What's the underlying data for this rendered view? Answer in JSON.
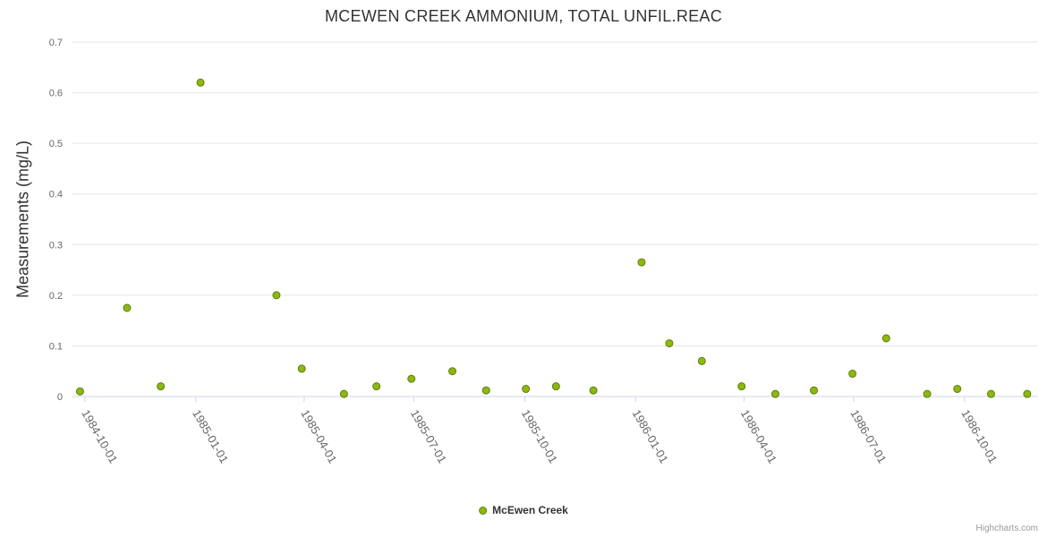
{
  "credits": "Highcharts.com",
  "colors": {
    "point_fill": "#8cb811",
    "point_stroke": "#5e7f0b",
    "grid": "#e6e6e6",
    "axis_line": "#ccd6eb",
    "label": "#666666",
    "title": "#333333"
  },
  "chart_data": {
    "type": "scatter",
    "title": "MCEWEN CREEK AMMONIUM, TOTAL UNFIL.REAC",
    "ylabel": "Measurements (mg/L)",
    "xlabel": "",
    "ylim": [
      0,
      0.7
    ],
    "yticks": [
      0,
      0.1,
      0.2,
      0.3,
      0.4,
      0.5,
      0.6,
      0.7
    ],
    "ytick_labels": [
      "0",
      "0.1",
      "0.2",
      "0.3",
      "0.4",
      "0.5",
      "0.6",
      "0.7"
    ],
    "xlim": [
      "1984-09-20",
      "1986-12-01"
    ],
    "xticks": [
      "1984-10-01",
      "1985-01-01",
      "1985-04-01",
      "1985-07-01",
      "1985-10-01",
      "1986-01-01",
      "1986-04-01",
      "1986-07-01",
      "1986-10-01"
    ],
    "grid": true,
    "legend_position": "bottom-center",
    "series": [
      {
        "name": "McEwen Creek",
        "points": [
          [
            "1984-09-27",
            0.01
          ],
          [
            "1984-11-05",
            0.175
          ],
          [
            "1984-12-03",
            0.02
          ],
          [
            "1985-01-05",
            0.62
          ],
          [
            "1985-03-09",
            0.2
          ],
          [
            "1985-03-30",
            0.055
          ],
          [
            "1985-05-04",
            0.005
          ],
          [
            "1985-05-31",
            0.02
          ],
          [
            "1985-06-29",
            0.035
          ],
          [
            "1985-08-02",
            0.05
          ],
          [
            "1985-08-30",
            0.012
          ],
          [
            "1985-10-02",
            0.015
          ],
          [
            "1985-10-27",
            0.02
          ],
          [
            "1985-11-27",
            0.012
          ],
          [
            "1986-01-06",
            0.265
          ],
          [
            "1986-01-29",
            0.105
          ],
          [
            "1986-02-25",
            0.07
          ],
          [
            "1986-03-30",
            0.02
          ],
          [
            "1986-04-27",
            0.005
          ],
          [
            "1986-05-29",
            0.012
          ],
          [
            "1986-06-30",
            0.045
          ],
          [
            "1986-07-28",
            0.115
          ],
          [
            "1986-08-31",
            0.005
          ],
          [
            "1986-09-25",
            0.015
          ],
          [
            "1986-10-23",
            0.005
          ],
          [
            "1986-11-22",
            0.005
          ]
        ]
      }
    ]
  }
}
